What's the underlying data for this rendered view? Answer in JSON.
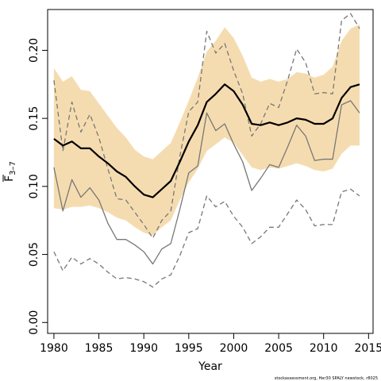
{
  "chart_data": {
    "type": "line",
    "xlabel": "Year",
    "ylabel_main": "F",
    "ylabel_sub": "3–7",
    "footnote": "stockassessment.org, Her30 SPALY newstock, r8025",
    "xlim": [
      1979.3,
      2015.5
    ],
    "ylim": [
      -0.008,
      0.23
    ],
    "x_ticks": [
      1980,
      1985,
      1990,
      1995,
      2000,
      2005,
      2010,
      2015
    ],
    "y_ticks": [
      0.0,
      0.05,
      0.1,
      0.15,
      0.2
    ],
    "y_tick_labels": [
      "0.00",
      "0.05",
      "0.10",
      "0.15",
      "0.20"
    ],
    "years": [
      1980,
      1981,
      1982,
      1983,
      1984,
      1985,
      1986,
      1987,
      1988,
      1989,
      1990,
      1991,
      1992,
      1993,
      1994,
      1995,
      1996,
      1997,
      1998,
      1999,
      2000,
      2001,
      2002,
      2003,
      2004,
      2005,
      2006,
      2007,
      2008,
      2009,
      2010,
      2011,
      2012,
      2013,
      2014
    ],
    "series": [
      {
        "role": "band",
        "color": "#f5dcb0",
        "upper": [
          0.187,
          0.177,
          0.181,
          0.171,
          0.17,
          0.161,
          0.152,
          0.143,
          0.136,
          0.127,
          0.122,
          0.12,
          0.126,
          0.132,
          0.147,
          0.163,
          0.18,
          0.199,
          0.207,
          0.217,
          0.209,
          0.196,
          0.18,
          0.177,
          0.179,
          0.177,
          0.179,
          0.184,
          0.183,
          0.18,
          0.182,
          0.188,
          0.207,
          0.216,
          0.219
        ],
        "lower": [
          0.084,
          0.083,
          0.085,
          0.085,
          0.086,
          0.084,
          0.081,
          0.077,
          0.075,
          0.07,
          0.066,
          0.064,
          0.07,
          0.075,
          0.09,
          0.103,
          0.113,
          0.126,
          0.131,
          0.136,
          0.132,
          0.123,
          0.114,
          0.112,
          0.114,
          0.113,
          0.115,
          0.117,
          0.115,
          0.112,
          0.111,
          0.113,
          0.124,
          0.13,
          0.13
        ]
      },
      {
        "role": "estimate",
        "color": "#000000",
        "values": [
          0.135,
          0.13,
          0.133,
          0.128,
          0.128,
          0.122,
          0.117,
          0.111,
          0.107,
          0.1,
          0.094,
          0.092,
          0.098,
          0.104,
          0.118,
          0.133,
          0.145,
          0.162,
          0.168,
          0.175,
          0.17,
          0.16,
          0.146,
          0.145,
          0.147,
          0.145,
          0.147,
          0.15,
          0.149,
          0.146,
          0.146,
          0.15,
          0.165,
          0.173,
          0.175
        ]
      },
      {
        "role": "solid-grey",
        "color": "#777777",
        "values": [
          0.114,
          0.082,
          0.105,
          0.092,
          0.099,
          0.09,
          0.073,
          0.061,
          0.061,
          0.057,
          0.052,
          0.043,
          0.054,
          0.058,
          0.083,
          0.11,
          0.115,
          0.154,
          0.141,
          0.146,
          0.131,
          0.118,
          0.097,
          0.106,
          0.116,
          0.114,
          0.129,
          0.145,
          0.137,
          0.119,
          0.12,
          0.12,
          0.16,
          0.163,
          0.154
        ]
      },
      {
        "role": "dashed-upper",
        "color": "#777777",
        "values": [
          0.178,
          0.126,
          0.162,
          0.14,
          0.153,
          0.136,
          0.113,
          0.091,
          0.09,
          0.081,
          0.072,
          0.062,
          0.075,
          0.082,
          0.122,
          0.155,
          0.162,
          0.214,
          0.198,
          0.205,
          0.185,
          0.168,
          0.137,
          0.146,
          0.161,
          0.158,
          0.178,
          0.201,
          0.191,
          0.168,
          0.169,
          0.168,
          0.222,
          0.227,
          0.216
        ]
      },
      {
        "role": "dashed-lower",
        "color": "#777777",
        "values": [
          0.052,
          0.038,
          0.048,
          0.043,
          0.047,
          0.043,
          0.037,
          0.032,
          0.033,
          0.032,
          0.03,
          0.026,
          0.032,
          0.035,
          0.049,
          0.066,
          0.069,
          0.093,
          0.085,
          0.089,
          0.078,
          0.07,
          0.058,
          0.063,
          0.07,
          0.07,
          0.08,
          0.09,
          0.083,
          0.071,
          0.072,
          0.072,
          0.096,
          0.098,
          0.093
        ]
      }
    ],
    "grid": false
  }
}
